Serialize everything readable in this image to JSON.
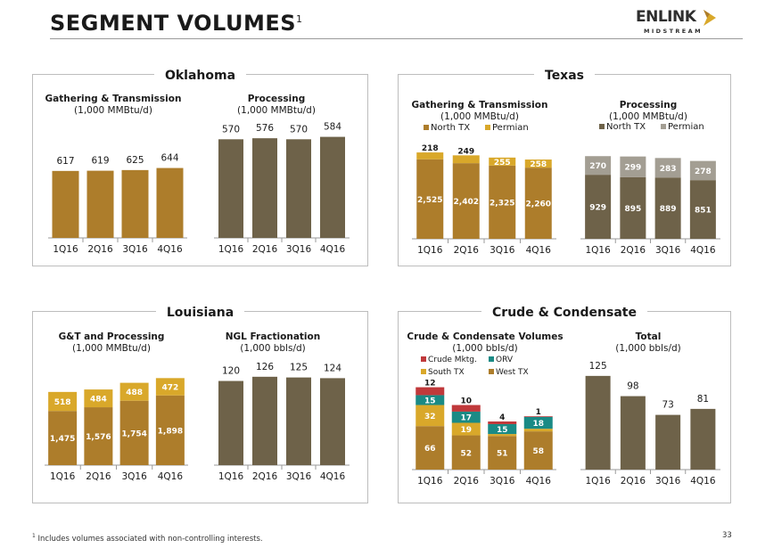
{
  "page": {
    "title": "SEGMENT VOLUMES",
    "title_sup": "1",
    "logo_word": "ENLINK",
    "logo_sub": "MIDSTREAM",
    "footnote_marker": "1",
    "footnote": "Includes volumes associated with non-controlling interests.",
    "page_number": "33"
  },
  "colors": {
    "gold": "#ad7d2b",
    "gray_brown": "#6e6249",
    "yellow": "#d9a82a",
    "light_gray": "#a39e93",
    "red": "#c0393b",
    "teal": "#1a8a85",
    "axis": "#9a9a9a"
  },
  "panels": [
    {
      "name": "oklahoma",
      "label": "Oklahoma"
    },
    {
      "name": "texas",
      "label": "Texas"
    },
    {
      "name": "louisiana",
      "label": "Louisiana"
    },
    {
      "name": "crude",
      "label": "Crude & Condensate"
    }
  ],
  "chart_data": [
    {
      "id": "ok-gt",
      "type": "bar",
      "title": "Gathering & Transmission",
      "subtitle": "(1,000 MMBtu/d)",
      "categories": [
        "1Q16",
        "2Q16",
        "3Q16",
        "4Q16"
      ],
      "series": [
        {
          "values": [
            617,
            619,
            625,
            644
          ],
          "color": "#ad7d2b"
        }
      ],
      "totals": [
        617,
        619,
        625,
        644
      ],
      "ylim": [
        0,
        1100
      ]
    },
    {
      "id": "ok-proc",
      "type": "bar",
      "title": "Processing",
      "subtitle": "(1,000 MMBtu/d)",
      "categories": [
        "1Q16",
        "2Q16",
        "3Q16",
        "4Q16"
      ],
      "series": [
        {
          "values": [
            570,
            576,
            570,
            584
          ],
          "color": "#6e6249"
        }
      ],
      "totals": [
        570,
        576,
        570,
        584
      ],
      "ylim": [
        0,
        690
      ]
    },
    {
      "id": "tx-gt",
      "type": "bar",
      "stacked": true,
      "title": "Gathering & Transmission",
      "subtitle": "(1,000 MMBtu/d)",
      "categories": [
        "1Q16",
        "2Q16",
        "3Q16",
        "4Q16"
      ],
      "legend": [
        {
          "label": "North TX",
          "color": "#ad7d2b"
        },
        {
          "label": "Permian",
          "color": "#d9a82a"
        }
      ],
      "series": [
        {
          "name": "North TX",
          "values": [
            2525,
            2402,
            2325,
            2260
          ],
          "color": "#ad7d2b"
        },
        {
          "name": "Permian",
          "values": [
            218,
            249,
            255,
            258
          ],
          "color": "#d9a82a"
        }
      ],
      "ylim": [
        0,
        3000
      ]
    },
    {
      "id": "tx-proc",
      "type": "bar",
      "stacked": true,
      "title": "Processing",
      "subtitle": "(1,000 MMBtu/d)",
      "categories": [
        "1Q16",
        "2Q16",
        "3Q16",
        "4Q16"
      ],
      "legend": [
        {
          "label": "North TX",
          "color": "#6e6249"
        },
        {
          "label": "Permian",
          "color": "#a39e93"
        }
      ],
      "series": [
        {
          "name": "North TX",
          "values": [
            929,
            895,
            889,
            851
          ],
          "color": "#6e6249"
        },
        {
          "name": "Permian",
          "values": [
            270,
            299,
            283,
            278
          ],
          "color": "#a39e93"
        }
      ],
      "ylim": [
        0,
        1370
      ]
    },
    {
      "id": "la-gtp",
      "type": "bar",
      "stacked": true,
      "title": "G&T and Processing",
      "subtitle": "(1,000 MMBtu/d)",
      "categories": [
        "1Q16",
        "2Q16",
        "3Q16",
        "4Q16"
      ],
      "series": [
        {
          "values": [
            1475,
            1576,
            1754,
            1898
          ],
          "color": "#ad7d2b"
        },
        {
          "values": [
            518,
            484,
            488,
            472
          ],
          "color": "#d9a82a"
        }
      ],
      "ylim": [
        0,
        2960
      ]
    },
    {
      "id": "la-ngl",
      "type": "bar",
      "title": "NGL Fractionation",
      "subtitle": "(1,000 bbls/d)",
      "categories": [
        "1Q16",
        "2Q16",
        "3Q16",
        "4Q16"
      ],
      "series": [
        {
          "values": [
            120,
            126,
            125,
            124
          ],
          "color": "#6e6249"
        }
      ],
      "totals": [
        120,
        126,
        125,
        124
      ],
      "ylim": [
        0,
        155
      ]
    },
    {
      "id": "crude-vol",
      "type": "bar",
      "stacked": true,
      "title": "Crude & Condensate Volumes",
      "subtitle": "(1,000 bbls/d)",
      "categories": [
        "1Q16",
        "2Q16",
        "3Q16",
        "4Q16"
      ],
      "legend": [
        {
          "label": "Crude Mktg.",
          "color": "#c0393b"
        },
        {
          "label": "ORV",
          "color": "#1a8a85"
        },
        {
          "label": "South TX",
          "color": "#d9a82a"
        },
        {
          "label": "West TX",
          "color": "#ad7d2b"
        }
      ],
      "series": [
        {
          "name": "West TX",
          "values": [
            66,
            52,
            51,
            58
          ],
          "color": "#ad7d2b"
        },
        {
          "name": "South TX",
          "values": [
            32,
            19,
            3,
            4
          ],
          "color": "#d9a82a"
        },
        {
          "name": "ORV",
          "values": [
            15,
            17,
            15,
            18
          ],
          "color": "#1a8a85"
        },
        {
          "name": "Crude Mktg.",
          "values": [
            12,
            10,
            4,
            1
          ],
          "color": "#c0393b"
        }
      ],
      "ylim": [
        0,
        142
      ]
    },
    {
      "id": "crude-total",
      "type": "bar",
      "title": "Total",
      "subtitle": "(1,000 bbls/d)",
      "categories": [
        "1Q16",
        "2Q16",
        "3Q16",
        "4Q16"
      ],
      "series": [
        {
          "values": [
            125,
            98,
            73,
            81
          ],
          "color": "#6e6249"
        }
      ],
      "totals": [
        125,
        98,
        73,
        81
      ],
      "ylim": [
        0,
        151
      ]
    }
  ]
}
